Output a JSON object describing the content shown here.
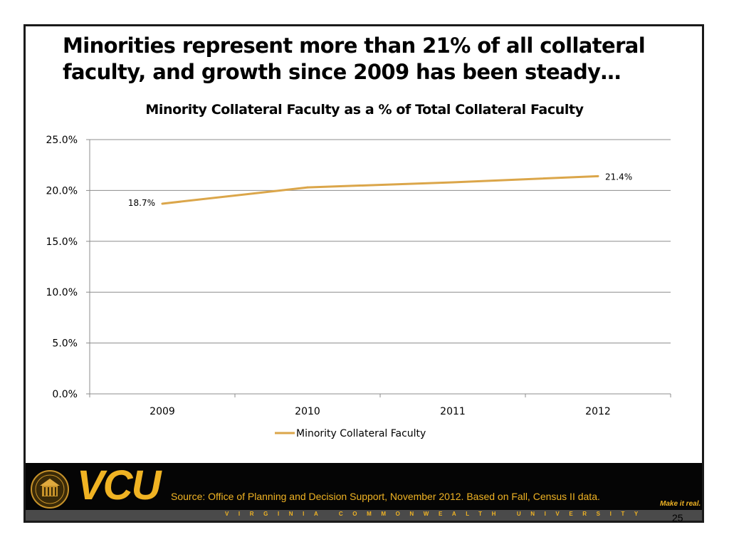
{
  "slide": {
    "headline": "Minorities represent more than 21% of all collateral faculty, and growth since 2009 has been steady…",
    "page_number": "25"
  },
  "footer": {
    "logo_text": "VCU",
    "university": "VIRGINIA COMMONWEALTH UNIVERSITY",
    "source": "Source: Office of Planning and Decision Support, November 2012. Based on Fall, Census II data.",
    "tagline": "Make it real.",
    "brand_color": "#f0b323",
    "seal_icon": "university-seal-icon"
  },
  "chart_data": {
    "type": "line",
    "title": "Minority Collateral Faculty as a % of Total Collateral Faculty",
    "categories": [
      "2009",
      "2010",
      "2011",
      "2012"
    ],
    "series": [
      {
        "name": "Minority Collateral Faculty",
        "values": [
          18.7,
          20.3,
          20.8,
          21.4
        ],
        "color": "#dba64a"
      }
    ],
    "data_labels": [
      "18.7%",
      "",
      "",
      "21.4%"
    ],
    "y_ticks": [
      "0.0%",
      "5.0%",
      "10.0%",
      "15.0%",
      "20.0%",
      "25.0%"
    ],
    "ylim": [
      0,
      25
    ],
    "grid": true,
    "legend": "bottom"
  }
}
